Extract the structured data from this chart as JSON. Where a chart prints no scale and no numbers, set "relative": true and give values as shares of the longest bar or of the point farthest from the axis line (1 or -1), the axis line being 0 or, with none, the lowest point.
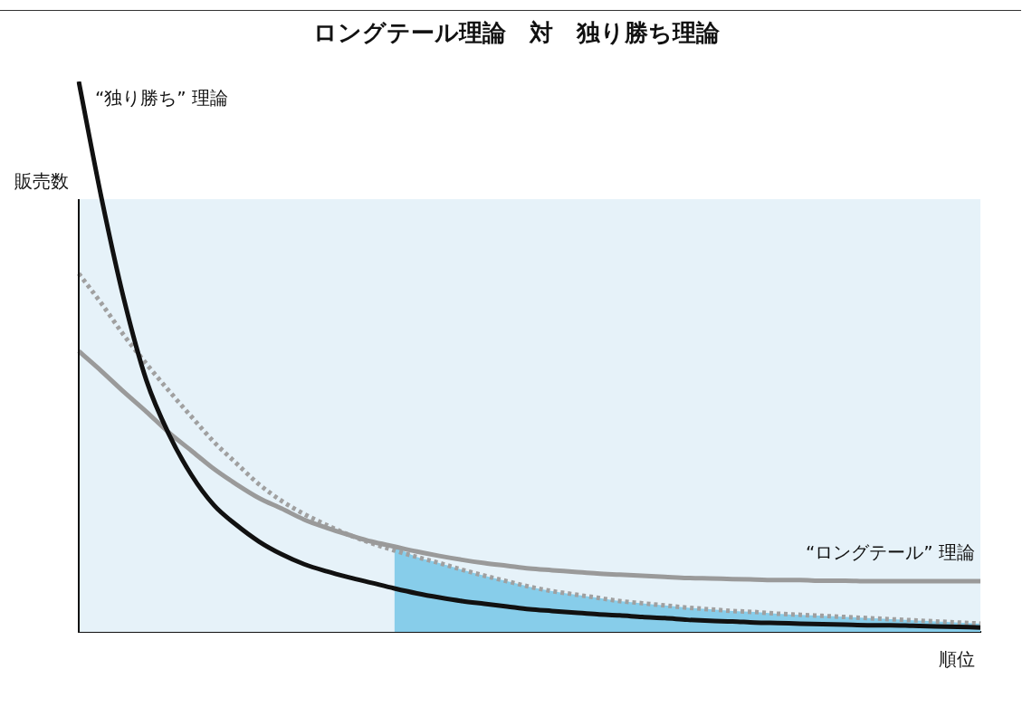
{
  "chart_data": {
    "type": "line",
    "title": "ロングテール理論　対　独り勝ち理論",
    "xlabel": "順位",
    "ylabel": "販売数",
    "relative": true,
    "legend": false,
    "grid": false,
    "marker": "none",
    "tick_labels": false,
    "categories": [
      null,
      null,
      null,
      null,
      null,
      null,
      null,
      null,
      null,
      null,
      null,
      null,
      null,
      null,
      null,
      null,
      null,
      null,
      null,
      null,
      null,
      null,
      null,
      null,
      null,
      null,
      null,
      null,
      null,
      null,
      null,
      null,
      null,
      null,
      null,
      null,
      null,
      null,
      null,
      null,
      null
    ],
    "bands": [
      {
        "axis": "y",
        "from": 0,
        "to": 0.786,
        "color": "#e6f2f9"
      }
    ],
    "series": [
      {
        "type": "area",
        "color": "#87cdea",
        "values": [
          null,
          null,
          null,
          null,
          null,
          null,
          null,
          null,
          null,
          null,
          null,
          null,
          null,
          null,
          0.155,
          0.136,
          0.125,
          0.113,
          0.102,
          0.092,
          0.082,
          0.074,
          0.068,
          0.062,
          0.056,
          0.052,
          0.048,
          0.044,
          0.041,
          0.038,
          0.036,
          0.033,
          0.031,
          0.029,
          0.027,
          0.025,
          0.023,
          0.021,
          0.019,
          0.017,
          0.015
        ]
      },
      {
        "type": "line",
        "color": "#a0a0a0",
        "line_style": "dotted",
        "values": [
          0.651,
          0.597,
          0.539,
          0.487,
          0.438,
          0.391,
          0.345,
          0.306,
          0.268,
          0.238,
          0.214,
          0.194,
          0.176,
          0.161,
          0.148,
          0.136,
          0.125,
          0.113,
          0.102,
          0.092,
          0.082,
          0.074,
          0.068,
          0.062,
          0.056,
          0.052,
          0.048,
          0.044,
          0.041,
          0.038,
          0.036,
          0.033,
          0.031,
          0.029,
          0.027,
          0.025,
          0.023,
          0.021,
          0.019,
          0.017,
          0.015
        ]
      },
      {
        "type": "line",
        "name": "“ロングテール” 理論",
        "color": "#9a9a9a",
        "line_style": "solid",
        "values": [
          0.51,
          0.474,
          0.436,
          0.4,
          0.362,
          0.329,
          0.296,
          0.268,
          0.243,
          0.224,
          0.204,
          0.189,
          0.176,
          0.164,
          0.155,
          0.146,
          0.138,
          0.131,
          0.125,
          0.12,
          0.115,
          0.112,
          0.109,
          0.106,
          0.104,
          0.102,
          0.1,
          0.098,
          0.097,
          0.096,
          0.095,
          0.094,
          0.094,
          0.093,
          0.093,
          0.092,
          0.092,
          0.092,
          0.092,
          0.092,
          0.092
        ]
      },
      {
        "type": "line",
        "name": "“独り勝ち” 理論",
        "color": "#111111",
        "line_style": "solid",
        "values": [
          1.0,
          0.79,
          0.605,
          0.457,
          0.359,
          0.285,
          0.23,
          0.194,
          0.164,
          0.141,
          0.123,
          0.11,
          0.099,
          0.089,
          0.079,
          0.07,
          0.0625,
          0.056,
          0.051,
          0.046,
          0.041,
          0.038,
          0.035,
          0.032,
          0.03,
          0.027,
          0.025,
          0.022,
          0.02,
          0.019,
          0.017,
          0.016,
          0.015,
          0.014,
          0.013,
          0.012,
          0.012,
          0.011,
          0.01,
          0.009,
          0.008
        ]
      }
    ]
  }
}
